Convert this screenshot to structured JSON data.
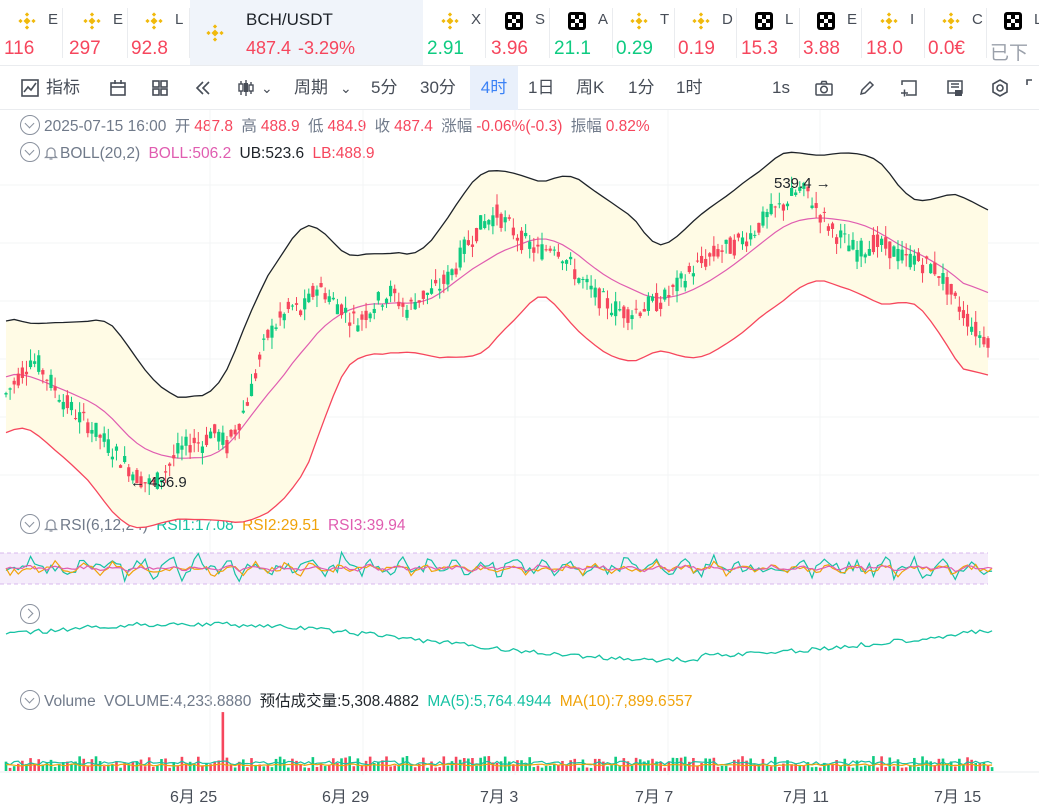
{
  "ticker": [
    {
      "name": "E",
      "price": "116",
      "icon": "bnb-icon",
      "color": "#f6465d"
    },
    {
      "name": "E",
      "price": "297",
      "icon": "bnb-icon",
      "color": "#f6465d"
    },
    {
      "name": "L",
      "price": "92.8",
      "icon": "bnb-icon",
      "color": "#f6465d"
    },
    {
      "name": "BCH/USDT",
      "price": "487.4",
      "change": "-3.29%",
      "icon": "bnb-icon",
      "color": "#f6465d",
      "active": true
    },
    {
      "name": "X",
      "price": "2.91",
      "icon": "bnb-icon",
      "color": "#0ecb81"
    },
    {
      "name": "S",
      "price": "3.96",
      "icon": "okx-icon",
      "color": "#f6465d"
    },
    {
      "name": "A",
      "price": "21.1",
      "icon": "okx-icon",
      "color": "#0ecb81"
    },
    {
      "name": "T",
      "price": "0.29",
      "icon": "bnb-icon",
      "color": "#0ecb81"
    },
    {
      "name": "D",
      "price": "0.19",
      "icon": "bnb-icon",
      "color": "#f6465d"
    },
    {
      "name": "L",
      "price": "15.3",
      "icon": "okx-icon",
      "color": "#f6465d"
    },
    {
      "name": "E",
      "price": "3.88",
      "icon": "okx-icon",
      "color": "#f6465d"
    },
    {
      "name": "I",
      "price": "18.0",
      "icon": "bnb-icon",
      "color": "#f6465d"
    },
    {
      "name": "C",
      "price": "0.0€",
      "icon": "bnb-icon",
      "color": "#f6465d"
    },
    {
      "name": "L",
      "price": "已下",
      "icon": "okx-icon",
      "color": "#9aa0aa"
    }
  ],
  "toolbar": {
    "indicators": "指标",
    "period": "周期",
    "intervals": [
      "5分",
      "30分",
      "4时",
      "1日",
      "周K",
      "1分",
      "1时"
    ],
    "selected_interval": "4时",
    "speed": "1s"
  },
  "ohlc": {
    "date": "2025-07-15 16:00",
    "open_label": "开",
    "open": "487.8",
    "high_label": "高",
    "high": "488.9",
    "low_label": "低",
    "low": "484.9",
    "close_label": "收",
    "close": "487.4",
    "change_label": "涨幅",
    "change": "-0.06%(-0.3)",
    "amplitude_label": "振幅",
    "amplitude": "0.82%"
  },
  "boll": {
    "name": "BOLL(20,2)",
    "boll": "BOLL:506.2",
    "ub": "UB:523.6",
    "lb": "LB:488.9"
  },
  "rsi": {
    "name": "RSI(6,12,24)",
    "rsi1": "RSI1:17.08",
    "rsi2": "RSI2:29.51",
    "rsi3": "RSI3:39.94"
  },
  "volume": {
    "name": "Volume",
    "volume": "VOLUME:4,233.8880",
    "estimated": "预估成交量:5,308.4882",
    "ma5": "MA(5):5,764.4944",
    "ma10": "MA(10):7,899.6557"
  },
  "annotations": {
    "high": "539.4 →",
    "low": "← 436.9"
  },
  "colors": {
    "up": "#0ecb81",
    "down": "#f6465d",
    "boll_mid": "#e05db0",
    "band_fill": "#fffbe5",
    "accent": "#3b82f6"
  },
  "chart_data": {
    "type": "candlestick",
    "timeframe": "4h",
    "x_tick_labels": [
      "6月 25",
      "6月 29",
      "7月 3",
      "7月 7",
      "7月 11",
      "7月 15"
    ],
    "price_range": [
      430,
      545
    ],
    "closes": [
      468,
      472,
      476,
      480,
      478,
      474,
      470,
      466,
      463,
      460,
      458,
      455,
      452,
      449,
      446,
      443,
      440,
      438,
      437,
      440,
      444,
      448,
      450,
      452,
      451,
      455,
      454,
      450,
      456,
      462,
      470,
      480,
      488,
      492,
      495,
      498,
      496,
      500,
      505,
      503,
      500,
      498,
      495,
      493,
      496,
      499,
      501,
      503,
      500,
      497,
      500,
      502,
      503,
      505,
      508,
      512,
      518,
      522,
      526,
      528,
      530,
      527,
      524,
      521,
      519,
      517,
      518,
      520,
      516,
      512,
      508,
      505,
      502,
      500,
      498,
      497,
      496,
      497,
      498,
      499,
      500,
      502,
      505,
      508,
      511,
      513,
      515,
      517,
      518,
      519,
      521,
      523,
      526,
      529,
      531,
      533,
      536,
      538,
      537,
      532,
      528,
      524,
      522,
      519,
      517,
      518,
      520,
      519,
      518,
      516,
      514,
      515,
      513,
      512,
      510,
      505,
      500,
      496,
      492,
      488,
      487.4
    ],
    "boll_band": {
      "upper_last": 523.6,
      "middle_last": 506.2,
      "lower_last": 488.9
    },
    "rsi_last": {
      "rsi1": 17.08,
      "rsi2": 29.51,
      "rsi3": 39.94
    },
    "annotated_high": 539.4,
    "annotated_low": 436.9
  }
}
